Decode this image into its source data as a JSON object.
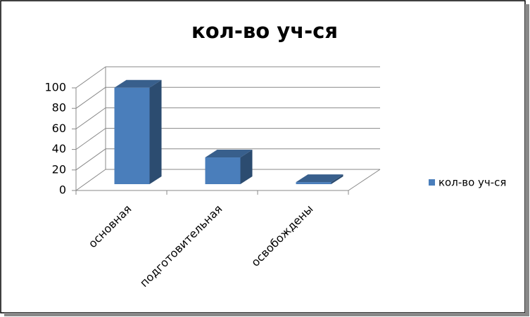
{
  "chart_data": {
    "type": "bar3d",
    "title": "кол-во уч-ся",
    "categories": [
      "основная",
      "подготовительная",
      "освобождены"
    ],
    "series": [
      {
        "name": "кол-во уч-ся",
        "color": "#4a7ebb",
        "values": [
          94,
          26,
          2
        ]
      }
    ],
    "ylim": [
      0,
      100
    ],
    "yticks": [
      0,
      20,
      40,
      60,
      80,
      100
    ],
    "grid": true,
    "legend": "right"
  }
}
